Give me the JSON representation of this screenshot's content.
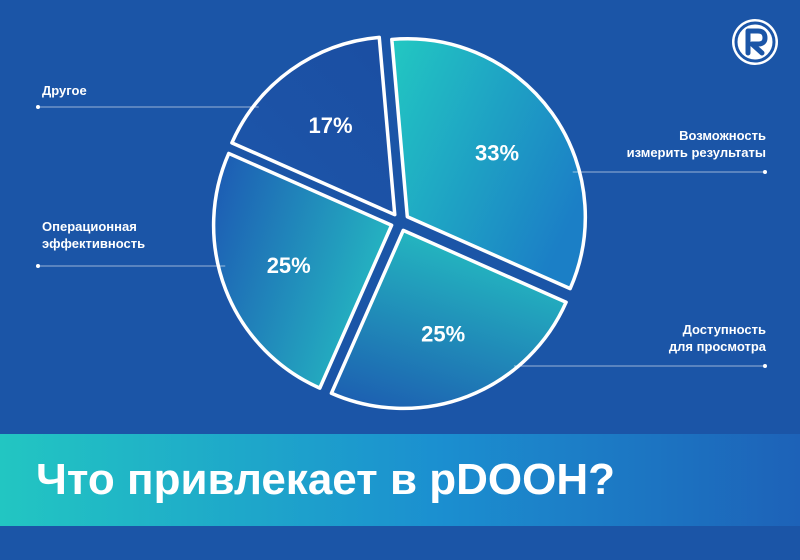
{
  "title": "Что привлекает в pDOOH?",
  "colors": {
    "background": "#1b55a7",
    "slice_dark": "#1c55ab",
    "slice_teal": "#22c2c0",
    "stroke": "#ffffff"
  },
  "logo": {
    "icon": "r-logo-icon"
  },
  "chart_data": {
    "type": "pie",
    "title": "Что привлекает в pDOOH?",
    "slices": [
      {
        "label": "Возможность\nизмерить результаты",
        "value": 33,
        "value_label": "33%"
      },
      {
        "label": "Доступность\nдля просмотра",
        "value": 25,
        "value_label": "25%"
      },
      {
        "label": "Операционная\nэффективность",
        "value": 25,
        "value_label": "25%"
      },
      {
        "label": "Другое",
        "value": 17,
        "value_label": "17%"
      }
    ],
    "legend": "callouts"
  }
}
